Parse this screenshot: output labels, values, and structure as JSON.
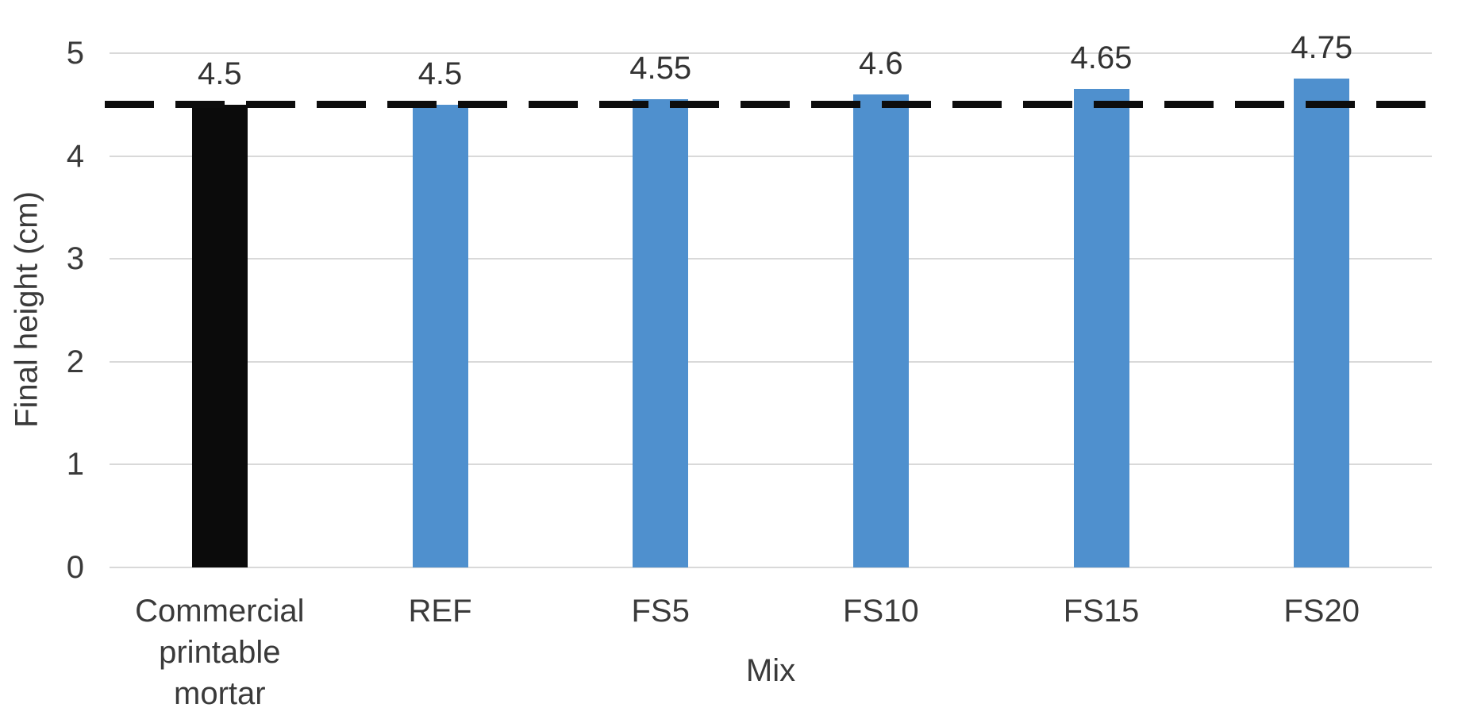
{
  "chart_data": {
    "type": "bar",
    "title": "",
    "categories": [
      "Commercial printable mortar",
      "REF",
      "FS5",
      "FS10",
      "FS15",
      "FS20"
    ],
    "values": [
      4.5,
      4.5,
      4.55,
      4.6,
      4.65,
      4.75
    ],
    "data_labels": [
      "4.5",
      "4.5",
      "4.55",
      "4.6",
      "4.65",
      "4.75"
    ],
    "bar_colors": [
      "#0b0b0b",
      "#4f90ce",
      "#4f90ce",
      "#4f90ce",
      "#4f90ce",
      "#4f90ce"
    ],
    "xlabel": "Mix",
    "ylabel": "Final height (cm)",
    "ylim": [
      0,
      5
    ],
    "yticks": [
      "0",
      "1",
      "2",
      "3",
      "4",
      "5"
    ],
    "grid": true,
    "legend_position": "none",
    "reference_line": {
      "value": 4.5,
      "style": "dashed",
      "color": "#0d0d0d"
    },
    "colors": {
      "gridline": "#d9d9d9",
      "text": "#3a3a3a",
      "background": "#ffffff"
    }
  }
}
